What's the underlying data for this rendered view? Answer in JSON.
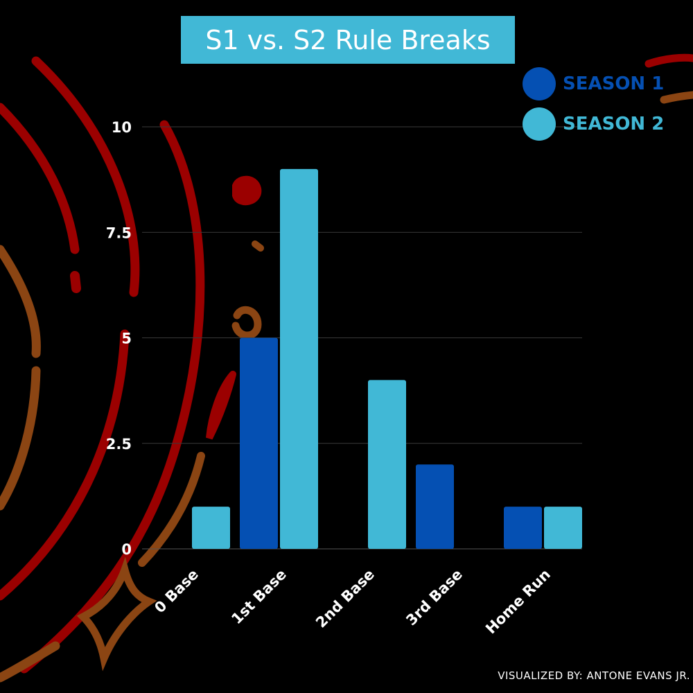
{
  "chart_data": {
    "type": "bar",
    "title": "S1 vs. S2 Rule Breaks",
    "categories": [
      "0 Base",
      "1st Base",
      "2nd Base",
      "3rd Base",
      "Home Run"
    ],
    "series": [
      {
        "name": "SEASON 1",
        "values": [
          0,
          5,
          0,
          2,
          1
        ],
        "color": "#0550b3"
      },
      {
        "name": "SEASON 2",
        "values": [
          1,
          9,
          4,
          0,
          1
        ],
        "color": "#41b8d6"
      }
    ],
    "yticks": [
      0,
      2.5,
      5,
      7.5,
      10
    ],
    "ytick_labels": [
      "0",
      "2.5",
      "5",
      "7.5",
      "10"
    ],
    "ylim": [
      0,
      10
    ],
    "xlabel": "",
    "ylabel": "",
    "grid": true,
    "legend_position": "top-right"
  },
  "title_bg_color": "#41b8d6",
  "background_color": "#000000",
  "credit": "VISUALIZED BY: ANTONE EVANS JR."
}
